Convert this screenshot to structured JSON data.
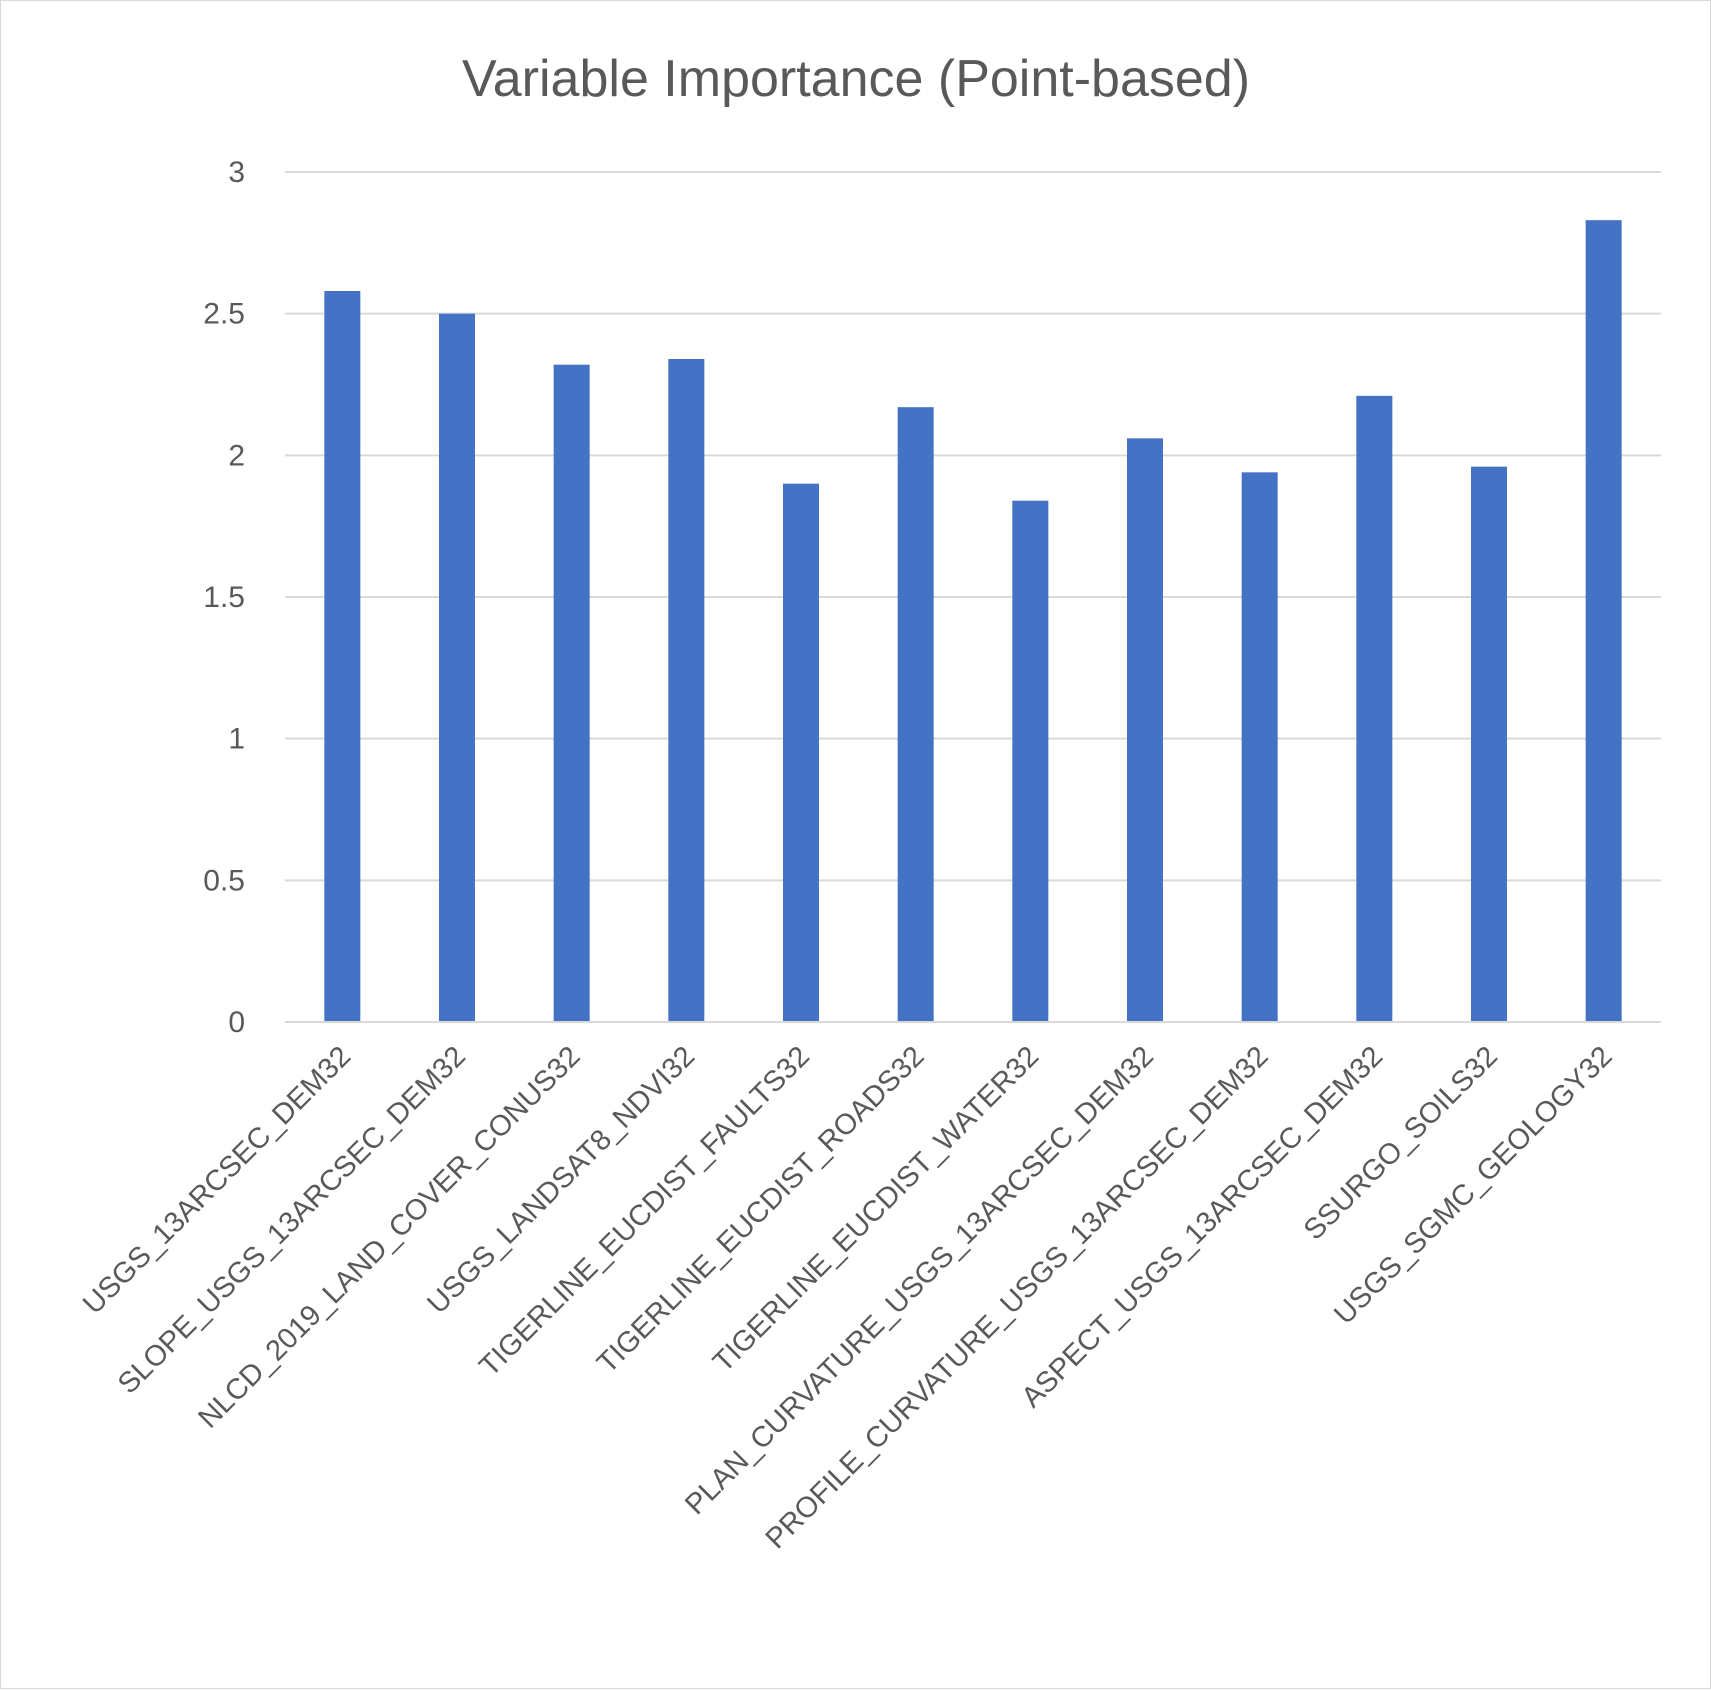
{
  "chart_data": {
    "type": "bar",
    "title": "Variable Importance (Point-based)",
    "xlabel": "",
    "ylabel": "",
    "ylim": [
      0,
      3
    ],
    "yticks": [
      0,
      0.5,
      1,
      1.5,
      2,
      2.5,
      3
    ],
    "ytick_labels": [
      "0",
      "0.5",
      "1",
      "1.5",
      "2",
      "2.5",
      "3"
    ],
    "grid": true,
    "legend": "none",
    "bar_color": "#4472C4",
    "categories": [
      "USGS_13ARCSEC_DEM32",
      "SLOPE_USGS_13ARCSEC_DEM32",
      "NLCD_2019_LAND_COVER_CONUS32",
      "USGS_LANDSAT8_NDVI32",
      "TIGERLINE_EUCDIST_FAULTS32",
      "TIGERLINE_EUCDIST_ROADS32",
      "TIGERLINE_EUCDIST_WATER32",
      "PLAN_CURVATURE_USGS_13ARCSEC_DEM32",
      "PROFILE_CURVATURE_USGS_13ARCSEC_DEM32",
      "ASPECT_USGS_13ARCSEC_DEM32",
      "SSURGO_SOILS32",
      "USGS_SGMC_GEOLOGY32"
    ],
    "values": [
      2.58,
      2.5,
      2.32,
      2.34,
      1.9,
      2.17,
      1.84,
      2.06,
      1.94,
      2.21,
      1.96,
      2.83
    ]
  }
}
